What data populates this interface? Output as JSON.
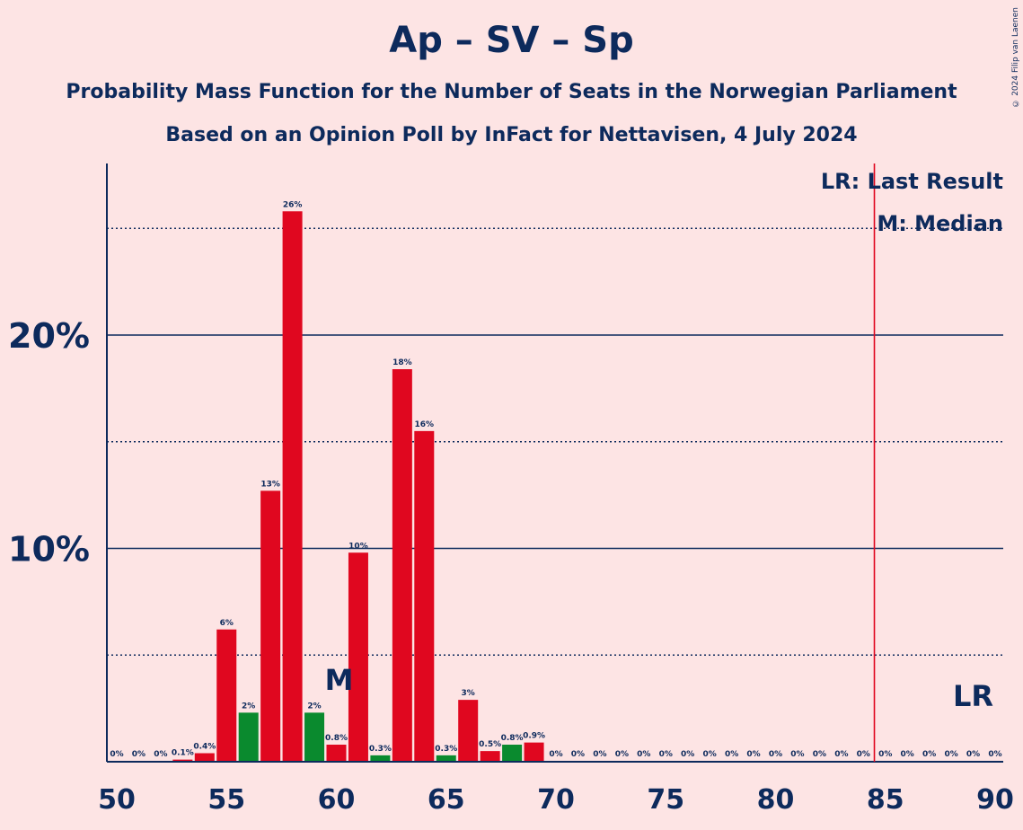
{
  "title": "Ap – SV – Sp",
  "subtitle1": "Probability Mass Function for the Number of Seats in the Norwegian Parliament",
  "subtitle2": "Based on an Opinion Poll by InFact for Nettavisen, 4 July 2024",
  "copyright": "© 2024 Filip van Laenen",
  "legend": {
    "last_result": "LR: Last Result",
    "median": "M: Median"
  },
  "markers": {
    "median_label": "M",
    "last_result_label": "LR"
  },
  "colors": {
    "red": "#e0071f",
    "green": "#0a8a2e",
    "navy": "#0d2a5c",
    "lr_line": "#e0071f",
    "background": "#fde4e4"
  },
  "chart_data": {
    "type": "bar",
    "x": [
      50,
      51,
      52,
      53,
      54,
      55,
      56,
      57,
      58,
      59,
      60,
      61,
      62,
      63,
      64,
      65,
      66,
      67,
      68,
      69,
      70,
      71,
      72,
      73,
      74,
      75,
      76,
      77,
      78,
      79,
      80,
      81,
      82,
      83,
      84,
      85,
      86,
      87,
      88,
      89,
      90
    ],
    "values": [
      0,
      0,
      0,
      0.1,
      0.4,
      6.2,
      2.3,
      12.7,
      25.8,
      2.3,
      0.8,
      9.8,
      0.3,
      18.4,
      15.5,
      0.3,
      2.9,
      0.5,
      0.8,
      0.9,
      0,
      0,
      0,
      0,
      0,
      0,
      0,
      0,
      0,
      0,
      0,
      0,
      0,
      0,
      0,
      0,
      0,
      0,
      0,
      0,
      0
    ],
    "labels": [
      "0%",
      "0%",
      "0%",
      "0.1%",
      "0.4%",
      "6%",
      "2%",
      "13%",
      "26%",
      "2%",
      "0.8%",
      "10%",
      "0.3%",
      "18%",
      "16%",
      "0.3%",
      "3%",
      "0.5%",
      "0.8%",
      "0.9%",
      "0%",
      "0%",
      "0%",
      "0%",
      "0%",
      "0%",
      "0%",
      "0%",
      "0%",
      "0%",
      "0%",
      "0%",
      "0%",
      "0%",
      "0%",
      "0%",
      "0%",
      "0%",
      "0%",
      "0%",
      "0%"
    ],
    "bar_colors": [
      "red",
      "red",
      "red",
      "red",
      "red",
      "red",
      "green",
      "red",
      "red",
      "green",
      "red",
      "red",
      "green",
      "red",
      "red",
      "green",
      "red",
      "red",
      "green",
      "red",
      "red",
      "red",
      "red",
      "red",
      "red",
      "red",
      "red",
      "red",
      "red",
      "red",
      "red",
      "red",
      "red",
      "red",
      "red",
      "red",
      "red",
      "red",
      "red",
      "red",
      "red"
    ],
    "x_ticks": [
      "50",
      "55",
      "60",
      "65",
      "70",
      "75",
      "80",
      "85",
      "90"
    ],
    "y_ticks": [
      "10%",
      "20%"
    ],
    "y_solid_gridlines": [
      10,
      20
    ],
    "y_dotted_gridlines": [
      5,
      15,
      25
    ],
    "ylim": [
      0,
      28
    ],
    "xlim": [
      49.5,
      90.5
    ],
    "median": 60,
    "last_result": 84.5
  }
}
